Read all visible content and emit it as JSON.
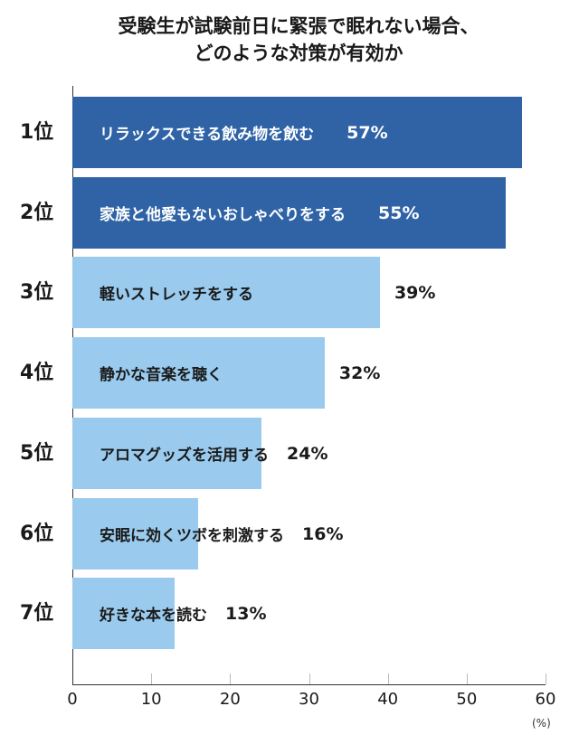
{
  "chart_data": {
    "type": "bar",
    "orientation": "horizontal",
    "title": [
      "受験生が試験前日に緊張で眠れない場合、",
      "どのような対策が有効か"
    ],
    "ranks": [
      "1位",
      "2位",
      "3位",
      "4位",
      "5位",
      "6位",
      "7位"
    ],
    "categories": [
      "リラックスできる飲み物を飲む",
      "家族と他愛もないおしゃべりをする",
      "軽いストレッチをする",
      "静かな音楽を聴く",
      "アロマグッズを活用する",
      "安眠に効くツボを刺激する",
      "好きな本を読む"
    ],
    "values": [
      57,
      55,
      39,
      32,
      24,
      16,
      13
    ],
    "value_labels": [
      "57%",
      "55%",
      "39%",
      "32%",
      "24%",
      "16%",
      "13%"
    ],
    "xlim": [
      0,
      60
    ],
    "x_ticks": [
      "0",
      "10",
      "20",
      "30",
      "40",
      "50",
      "60"
    ],
    "unit_label": "(%)",
    "grid": false,
    "colors": {
      "top": "#2f63a6",
      "other": "#9acbee"
    }
  }
}
